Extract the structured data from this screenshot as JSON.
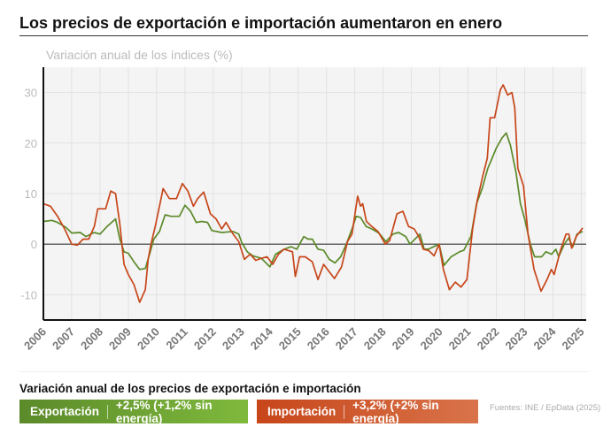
{
  "chart_data": {
    "type": "line",
    "title": "Los precios de exportación e importación aumentaron en enero",
    "subtitle": "Variación anual de los índices (%)",
    "xlim": [
      2006,
      2025.08
    ],
    "ylim": [
      -15,
      35
    ],
    "yticks": [
      -10,
      0,
      10,
      20,
      30
    ],
    "xticks": [
      "2006",
      "2007",
      "2008",
      "2009",
      "2010",
      "2011",
      "2012",
      "2013",
      "2014",
      "2015",
      "2016",
      "2017",
      "2018",
      "2019",
      "2020",
      "2021",
      "2022",
      "2023",
      "2024",
      "2025"
    ],
    "grid": true,
    "series": [
      {
        "name": "Exportación",
        "color": "#5b8a2a",
        "points": [
          [
            2006.0,
            4.5
          ],
          [
            2006.3,
            4.7
          ],
          [
            2006.5,
            4.3
          ],
          [
            2006.8,
            3.3
          ],
          [
            2007.0,
            2.2
          ],
          [
            2007.3,
            2.3
          ],
          [
            2007.5,
            1.5
          ],
          [
            2007.8,
            2.3
          ],
          [
            2008.0,
            2
          ],
          [
            2008.25,
            3.5
          ],
          [
            2008.55,
            5
          ],
          [
            2008.7,
            1
          ],
          [
            2008.85,
            -1.5
          ],
          [
            2009.0,
            -1.8
          ],
          [
            2009.2,
            -3.5
          ],
          [
            2009.4,
            -5
          ],
          [
            2009.6,
            -4.8
          ],
          [
            2009.75,
            -2
          ],
          [
            2009.9,
            1
          ],
          [
            2010.1,
            2.5
          ],
          [
            2010.3,
            5.8
          ],
          [
            2010.5,
            5.5
          ],
          [
            2010.8,
            5.5
          ],
          [
            2011.0,
            7.7
          ],
          [
            2011.2,
            6.5
          ],
          [
            2011.4,
            4.3
          ],
          [
            2011.6,
            4.5
          ],
          [
            2011.8,
            4.3
          ],
          [
            2011.95,
            2.7
          ],
          [
            2012.3,
            2.3
          ],
          [
            2012.7,
            2.5
          ],
          [
            2012.9,
            2
          ],
          [
            2013.0,
            0.4
          ],
          [
            2013.2,
            -1.5
          ],
          [
            2013.4,
            -2.3
          ],
          [
            2013.7,
            -2.8
          ],
          [
            2014.0,
            -4.5
          ],
          [
            2014.2,
            -2
          ],
          [
            2014.5,
            -1
          ],
          [
            2014.75,
            -0.5
          ],
          [
            2014.95,
            -1
          ],
          [
            2015.2,
            1.5
          ],
          [
            2015.35,
            1
          ],
          [
            2015.5,
            1
          ],
          [
            2015.7,
            -1
          ],
          [
            2015.9,
            -1.2
          ],
          [
            2016.1,
            -3
          ],
          [
            2016.3,
            -3.7
          ],
          [
            2016.5,
            -2.5
          ],
          [
            2016.7,
            0
          ],
          [
            2016.9,
            3
          ],
          [
            2017.05,
            5.5
          ],
          [
            2017.2,
            5.3
          ],
          [
            2017.4,
            3.5
          ],
          [
            2017.6,
            3
          ],
          [
            2017.85,
            2.2
          ],
          [
            2018.1,
            0.5
          ],
          [
            2018.35,
            2
          ],
          [
            2018.55,
            2.3
          ],
          [
            2018.8,
            1.5
          ],
          [
            2018.95,
            0
          ],
          [
            2019.3,
            2
          ],
          [
            2019.45,
            -1
          ],
          [
            2019.6,
            -1
          ],
          [
            2019.98,
            0
          ],
          [
            2020.15,
            -4.2
          ],
          [
            2020.4,
            -2.5
          ],
          [
            2020.7,
            -1.5
          ],
          [
            2020.85,
            -1.2
          ],
          [
            2021.1,
            1.5
          ],
          [
            2021.3,
            8
          ],
          [
            2021.5,
            11
          ],
          [
            2021.7,
            15
          ],
          [
            2021.85,
            17
          ],
          [
            2022.0,
            19
          ],
          [
            2022.2,
            21
          ],
          [
            2022.35,
            22
          ],
          [
            2022.5,
            19.5
          ],
          [
            2022.7,
            14
          ],
          [
            2022.85,
            8
          ],
          [
            2023.0,
            5
          ],
          [
            2023.2,
            0
          ],
          [
            2023.35,
            -2.5
          ],
          [
            2023.6,
            -2.5
          ],
          [
            2023.75,
            -1.5
          ],
          [
            2023.95,
            -2
          ],
          [
            2024.1,
            -1
          ],
          [
            2024.2,
            -2.5
          ],
          [
            2024.4,
            0
          ],
          [
            2024.55,
            1.2
          ],
          [
            2024.7,
            -0.5
          ],
          [
            2024.85,
            2
          ],
          [
            2025.05,
            2.5
          ]
        ]
      },
      {
        "name": "Importación",
        "color": "#c7461a",
        "points": [
          [
            2006.0,
            8
          ],
          [
            2006.25,
            7.5
          ],
          [
            2006.5,
            5.5
          ],
          [
            2006.75,
            3
          ],
          [
            2007.0,
            0
          ],
          [
            2007.2,
            -0.2
          ],
          [
            2007.4,
            1
          ],
          [
            2007.6,
            1
          ],
          [
            2007.8,
            3.5
          ],
          [
            2007.92,
            7
          ],
          [
            2008.2,
            7
          ],
          [
            2008.38,
            10.5
          ],
          [
            2008.55,
            10
          ],
          [
            2008.7,
            4
          ],
          [
            2008.85,
            -4
          ],
          [
            2009.0,
            -6
          ],
          [
            2009.2,
            -8
          ],
          [
            2009.4,
            -11.5
          ],
          [
            2009.6,
            -9
          ],
          [
            2009.7,
            -3
          ],
          [
            2009.8,
            0
          ],
          [
            2009.95,
            3.5
          ],
          [
            2010.12,
            8
          ],
          [
            2010.23,
            11
          ],
          [
            2010.45,
            9
          ],
          [
            2010.7,
            9
          ],
          [
            2010.91,
            12
          ],
          [
            2011.1,
            10.5
          ],
          [
            2011.3,
            7.5
          ],
          [
            2011.45,
            9
          ],
          [
            2011.66,
            10.3
          ],
          [
            2011.9,
            6
          ],
          [
            2012.1,
            5
          ],
          [
            2012.3,
            3
          ],
          [
            2012.45,
            4.3
          ],
          [
            2012.7,
            2
          ],
          [
            2012.9,
            0.5
          ],
          [
            2013.1,
            -3
          ],
          [
            2013.3,
            -2
          ],
          [
            2013.5,
            -3.2
          ],
          [
            2013.7,
            -2.8
          ],
          [
            2013.9,
            -2.5
          ],
          [
            2014.1,
            -4
          ],
          [
            2014.3,
            -2
          ],
          [
            2014.5,
            -1
          ],
          [
            2014.8,
            -1.5
          ],
          [
            2014.9,
            -6.4
          ],
          [
            2015.05,
            -2.5
          ],
          [
            2015.25,
            -2.5
          ],
          [
            2015.5,
            -3.5
          ],
          [
            2015.7,
            -7
          ],
          [
            2015.9,
            -4
          ],
          [
            2016.28,
            -6.8
          ],
          [
            2016.53,
            -4.5
          ],
          [
            2016.74,
            0.5
          ],
          [
            2016.9,
            2
          ],
          [
            2017.1,
            9.5
          ],
          [
            2017.2,
            7.5
          ],
          [
            2017.28,
            8
          ],
          [
            2017.41,
            4.5
          ],
          [
            2017.6,
            3.5
          ],
          [
            2017.82,
            2.5
          ],
          [
            2018.08,
            0
          ],
          [
            2018.23,
            0.7
          ],
          [
            2018.49,
            6
          ],
          [
            2018.7,
            6.5
          ],
          [
            2018.9,
            3.5
          ],
          [
            2019.1,
            3
          ],
          [
            2019.26,
            1.5
          ],
          [
            2019.42,
            -1
          ],
          [
            2019.62,
            -1.3
          ],
          [
            2019.8,
            -2.3
          ],
          [
            2019.98,
            0
          ],
          [
            2020.13,
            -5
          ],
          [
            2020.34,
            -9
          ],
          [
            2020.55,
            -7.5
          ],
          [
            2020.75,
            -8.5
          ],
          [
            2020.96,
            -7
          ],
          [
            2021.16,
            3
          ],
          [
            2021.32,
            8.5
          ],
          [
            2021.52,
            13.5
          ],
          [
            2021.68,
            17
          ],
          [
            2021.78,
            25
          ],
          [
            2021.94,
            25
          ],
          [
            2022.14,
            30.5
          ],
          [
            2022.24,
            31.5
          ],
          [
            2022.4,
            29.5
          ],
          [
            2022.55,
            30
          ],
          [
            2022.65,
            27
          ],
          [
            2022.76,
            15
          ],
          [
            2022.96,
            11.5
          ],
          [
            2023.12,
            2
          ],
          [
            2023.33,
            -5
          ],
          [
            2023.58,
            -9.3
          ],
          [
            2023.79,
            -7
          ],
          [
            2023.94,
            -5
          ],
          [
            2024.04,
            -6
          ],
          [
            2024.25,
            -1.5
          ],
          [
            2024.46,
            2
          ],
          [
            2024.56,
            2
          ],
          [
            2024.66,
            -0.8
          ],
          [
            2024.82,
            1.5
          ],
          [
            2025.05,
            3.2
          ]
        ]
      }
    ]
  },
  "legend": {
    "title": "Variación anual de los precios de exportación e importación",
    "export_label": "Exportación",
    "export_value": "+2,5% (+1,2% sin energía)",
    "import_label": "Importación",
    "import_value": "+3,2% (+2% sin energía)"
  },
  "source": "Fuentes: INE / EpData (2025)"
}
